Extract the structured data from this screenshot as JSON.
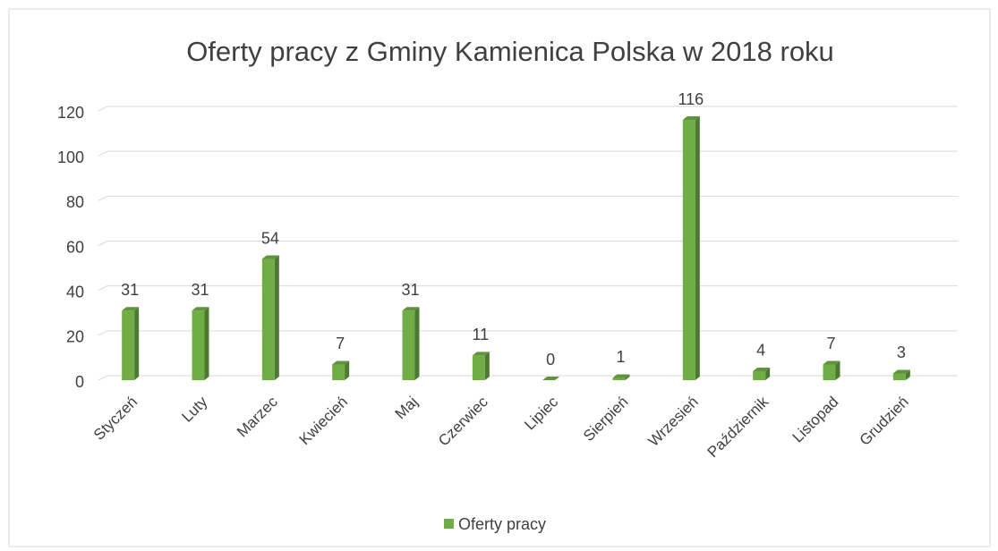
{
  "chart_data": {
    "type": "bar",
    "title": "Oferty pracy z Gminy Kamienica Polska w 2018 roku",
    "categories": [
      "Styczeń",
      "Luty",
      "Marzec",
      "Kwiecień",
      "Maj",
      "Czerwiec",
      "Lipiec",
      "Sierpień",
      "Wrzesień",
      "Październik",
      "Listopad",
      "Grudzień"
    ],
    "series": [
      {
        "name": "Oferty pracy",
        "color": "#70ad47",
        "values": [
          31,
          31,
          54,
          7,
          31,
          11,
          0,
          1,
          116,
          4,
          7,
          3
        ]
      }
    ],
    "ylim": [
      0,
      120
    ],
    "yticks": [
      0,
      20,
      40,
      60,
      80,
      100,
      120
    ],
    "grid": true,
    "legend": "bottom",
    "data_labels": true
  }
}
